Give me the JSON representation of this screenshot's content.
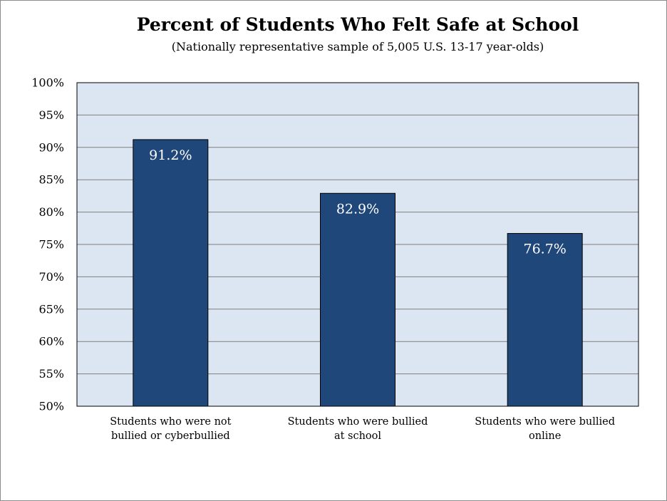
{
  "chart_data": {
    "type": "bar",
    "title": "Percent of Students Who Felt Safe at School",
    "subtitle": "(Nationally representative sample of 5,005 U.S. 13-17 year-olds)",
    "categories": [
      [
        "Students who were not",
        "bullied or cyberbullied"
      ],
      [
        "Students who were bullied",
        "at school"
      ],
      [
        "Students who were bullied",
        "online"
      ]
    ],
    "values": [
      91.2,
      82.9,
      76.7
    ],
    "data_labels": [
      "91.2%",
      "82.9%",
      "76.7%"
    ],
    "ylim": [
      50,
      100
    ],
    "yticks": [
      50,
      55,
      60,
      65,
      70,
      75,
      80,
      85,
      90,
      95,
      100
    ],
    "ytick_labels": [
      "50%",
      "55%",
      "60%",
      "65%",
      "70%",
      "75%",
      "80%",
      "85%",
      "90%",
      "95%",
      "100%"
    ],
    "grid": true,
    "legend": "none",
    "colors": {
      "bar": "#1f477a",
      "plot_background": "#dce6f2",
      "gridline": "#7f7f7f",
      "frame": "#8c8c8c"
    }
  }
}
